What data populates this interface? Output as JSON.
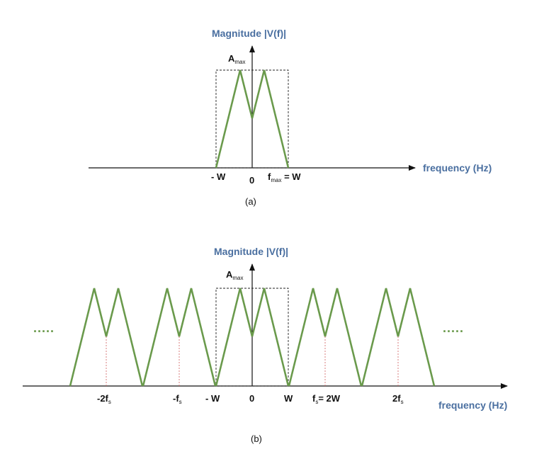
{
  "panel_a": {
    "y_axis_label": "Magnitude |V(f)|",
    "peak_label_main": "A",
    "peak_label_sub": "max",
    "x_axis_label": "frequency (Hz)",
    "tick_neg_w": "- W",
    "tick_zero": "0",
    "tick_fmax_main": "f",
    "tick_fmax_sub": "max",
    "tick_fmax_rest": " = W",
    "caption": "(a)"
  },
  "panel_b": {
    "y_axis_label": "Magnitude |V(f)|",
    "peak_label_main": "A",
    "peak_label_sub": "max",
    "x_axis_label": "frequency (Hz)",
    "tick_neg_2fs_main": "-2f",
    "tick_neg_2fs_sub": "s",
    "tick_neg_fs_main": "-f",
    "tick_neg_fs_sub": "s",
    "tick_neg_w": "- W",
    "tick_zero": "0",
    "tick_w": "W",
    "tick_fs_main": "f",
    "tick_fs_sub": "s",
    "tick_fs_rest": "= 2W",
    "tick_2fs_main": "2f",
    "tick_2fs_sub": "s",
    "ellipsis_left": ".....",
    "ellipsis_right": ".....",
    "caption": "(b)",
    "replica_count": 5
  },
  "colors": {
    "spectrum": "#6a9a4c",
    "axis_title": "#4a6fa0",
    "guide_lines": "#d47070"
  }
}
